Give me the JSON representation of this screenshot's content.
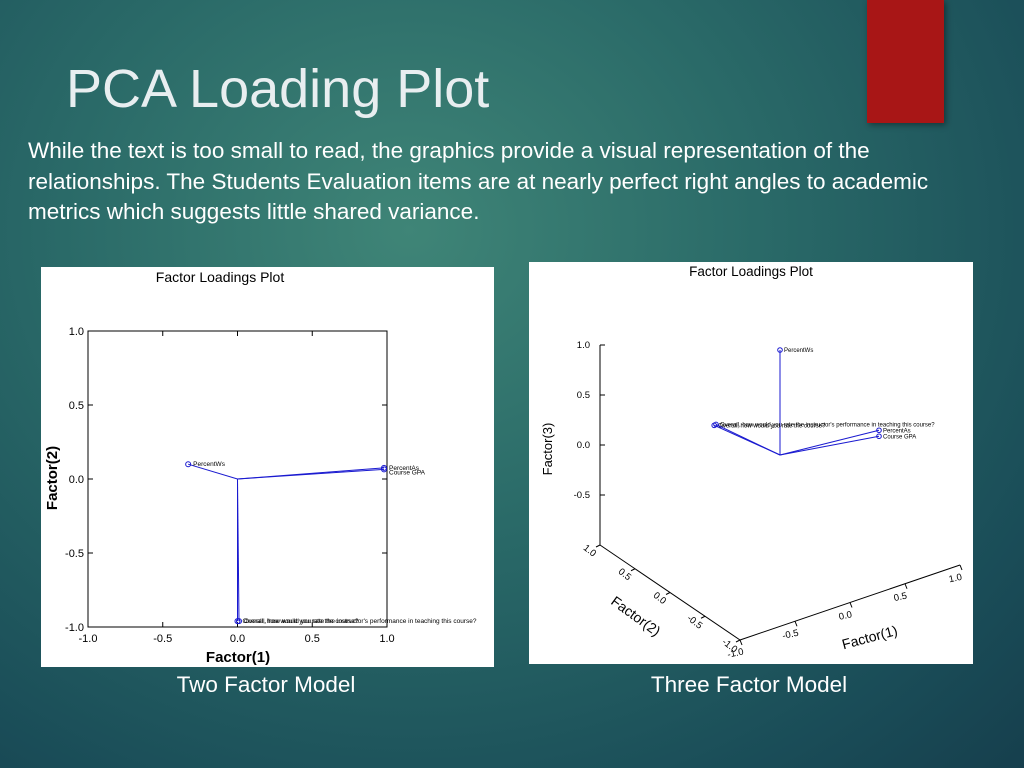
{
  "slide": {
    "title": "PCA Loading Plot",
    "body": "While the text is too small to read, the graphics provide a visual representation of the relationships.  The Students Evaluation items are at nearly perfect right angles to academic metrics which suggests little shared variance.",
    "captions": [
      "Two Factor Model",
      "Three Factor Model"
    ]
  },
  "chart_data": [
    {
      "type": "loading2d",
      "title": "Factor Loadings Plot",
      "xlabel": "Factor(1)",
      "ylabel": "Factor(2)",
      "color": "#1a1ad0",
      "xlim": [
        -1,
        1
      ],
      "ylim": [
        -1,
        1
      ],
      "xticks": [
        {
          "value": -1,
          "label": "-1.0"
        },
        -0.5,
        {
          "value": 0,
          "label": "0.0"
        },
        0.5,
        {
          "value": 1,
          "label": "1.0"
        }
      ],
      "yticks": [
        {
          "value": -1,
          "label": "-1.0"
        },
        -0.5,
        {
          "value": 0,
          "label": "0.0"
        },
        0.5,
        {
          "value": 1,
          "label": "1.0"
        }
      ],
      "points": {
        "labels": [
          "PercentWs",
          "PercentAs",
          "Course GPA",
          "Overall, how would you rate the course?",
          "Overall, how would you rate the instructor's performance in teaching this course?"
        ],
        "x": [
          -0.33,
          0.98,
          0.98,
          0.0,
          0.01
        ],
        "y": [
          0.1,
          0.075,
          0.065,
          -0.96,
          -0.96
        ]
      }
    },
    {
      "type": "loading3d",
      "title": "Factor Loadings Plot",
      "xlabel": "Factor(1)",
      "ylabel": "Factor(2)",
      "zlabel": "Factor(3)",
      "color": "#1a1ad0",
      "xlim": [
        -1,
        1
      ],
      "ylim": [
        -1,
        1
      ],
      "zlim": [
        -1,
        1
      ],
      "xticks": [
        {
          "value": -1,
          "label": "-1.0"
        },
        -0.5,
        {
          "value": 0,
          "label": "0.0"
        },
        0.5,
        {
          "value": 1,
          "label": "1.0"
        }
      ],
      "yticks": [
        {
          "value": -1,
          "label": "-1.0"
        },
        -0.5,
        {
          "value": 0,
          "label": "0.0"
        },
        0.5,
        {
          "value": 1,
          "label": "1.0"
        }
      ],
      "zticks": [
        -0.5,
        {
          "value": 0,
          "label": "0.0"
        },
        0.5,
        {
          "value": 1,
          "label": "1.0"
        }
      ],
      "points": {
        "labels": [
          "PercentWs",
          "PercentAs",
          "Course GPA",
          "Overall, how would you rate the course?",
          "Overall, how would you rate the instructor's performance in teaching this course?"
        ],
        "x": [
          0.0,
          0.9,
          0.9,
          0.0,
          0.01
        ],
        "y": [
          0.0,
          0.0,
          0.0,
          0.94,
          0.93
        ],
        "z": [
          1.05,
          -0.09,
          -0.15,
          -0.15,
          -0.14
        ]
      }
    }
  ]
}
